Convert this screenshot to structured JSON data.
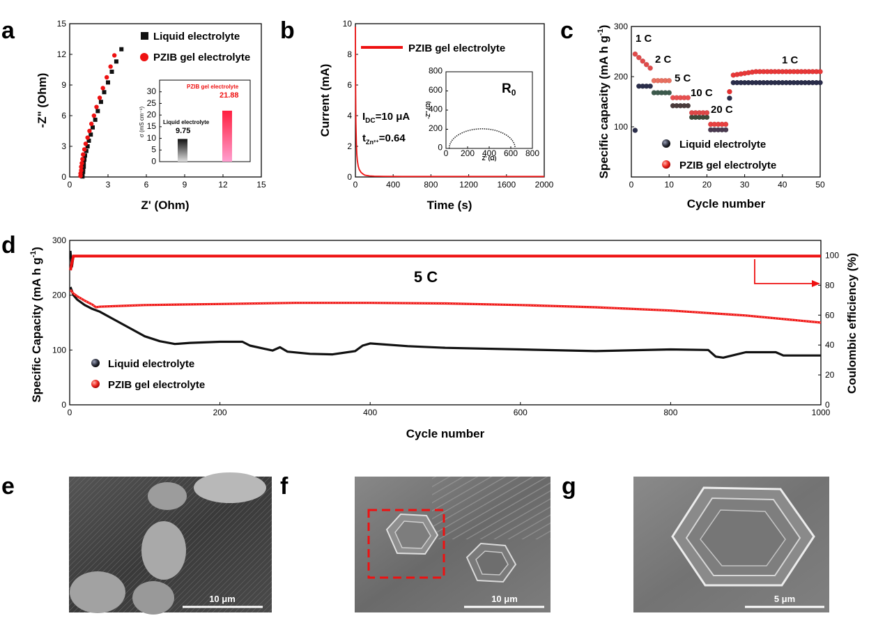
{
  "panels": {
    "a": "a",
    "b": "b",
    "c": "c",
    "d": "d",
    "e": "e",
    "f": "f",
    "g": "g"
  },
  "colors": {
    "liquid": "#111111",
    "gel": "#ee1111"
  },
  "chart_data": [
    {
      "id": "a",
      "type": "scatter",
      "xlabel": "Z' (Ohm)",
      "ylabel": "-Z\" (Ohm)",
      "xlim": [
        0,
        15
      ],
      "ylim": [
        0,
        15
      ],
      "xticks": [
        "0",
        "3",
        "6",
        "9",
        "12",
        "15"
      ],
      "yticks": [
        "0",
        "3",
        "6",
        "9",
        "12",
        "15"
      ],
      "series": [
        {
          "name": "Liquid electrolyte",
          "marker": "square",
          "color": "#111111",
          "x": [
            1.0,
            1.0,
            1.05,
            1.05,
            1.1,
            1.1,
            1.15,
            1.2,
            1.3,
            1.4,
            1.5,
            1.65,
            1.8,
            2.0,
            2.2,
            2.45,
            2.7,
            3.0,
            3.3,
            3.65,
            4.05
          ],
          "y": [
            0.05,
            0.25,
            0.5,
            0.75,
            1.0,
            1.35,
            1.7,
            2.1,
            2.55,
            3.0,
            3.55,
            4.15,
            4.85,
            5.6,
            6.45,
            7.35,
            8.3,
            9.25,
            10.3,
            11.3,
            12.5
          ]
        },
        {
          "name": "PZIB gel electrolyte",
          "marker": "circle",
          "color": "#ee1111",
          "x": [
            0.85,
            0.85,
            0.9,
            0.9,
            0.95,
            1.0,
            1.05,
            1.15,
            1.25,
            1.4,
            1.55,
            1.7,
            1.9,
            2.1,
            2.35,
            2.6,
            2.9,
            3.2,
            3.5
          ],
          "y": [
            0.1,
            0.35,
            0.65,
            1.0,
            1.35,
            1.75,
            2.2,
            2.7,
            3.25,
            3.85,
            4.5,
            5.2,
            6.0,
            6.85,
            7.75,
            8.7,
            9.75,
            10.8,
            11.9
          ]
        }
      ],
      "inset": {
        "ylabel": "σ (mS cm⁻¹)",
        "ylim": [
          0,
          35
        ],
        "yticks": [
          "0",
          "5",
          "10",
          "15",
          "20",
          "25",
          "30"
        ],
        "bars": [
          {
            "label": "Liquid electrolyte",
            "value": 9.75,
            "value_text": "9.75"
          },
          {
            "label": "PZIB gel electrolyte",
            "value": 21.88,
            "value_text": "21.88"
          }
        ]
      }
    },
    {
      "id": "b",
      "type": "line",
      "xlabel": "Time (s)",
      "ylabel": "Current (mA)",
      "xlim": [
        0,
        2000
      ],
      "ylim": [
        0,
        10
      ],
      "xticks": [
        "0",
        "400",
        "800",
        "1200",
        "1600",
        "2000"
      ],
      "yticks": [
        "0",
        "2",
        "4",
        "6",
        "8",
        "10"
      ],
      "series": [
        {
          "name": "PZIB gel electrolyte",
          "color": "#ee1111",
          "x": [
            0,
            2,
            5,
            10,
            15,
            20,
            30,
            40,
            60,
            80,
            100,
            150,
            200,
            300,
            500,
            800,
            1200,
            1600,
            2000
          ],
          "y": [
            9.8,
            6.0,
            3.6,
            2.2,
            1.5,
            1.1,
            0.7,
            0.5,
            0.3,
            0.2,
            0.12,
            0.07,
            0.05,
            0.04,
            0.03,
            0.03,
            0.03,
            0.03,
            0.03
          ]
        }
      ],
      "annotations": {
        "idc": "I_DC=10 μA",
        "idc_main": "I",
        "idc_sub": "DC",
        "idc_rest": "=10 μA",
        "t_main": "t",
        "t_sub": "Zn²⁺",
        "t_rest": "=0.64"
      },
      "inset": {
        "label": "R₀",
        "label_main": "R",
        "label_sub": "0",
        "xlabel": "Z' (Ω)",
        "ylabel": "-Z'' (Ω)",
        "xlim": [
          0,
          800
        ],
        "ylim": [
          0,
          800
        ],
        "xticks": [
          "0",
          "200",
          "400",
          "600",
          "800"
        ],
        "yticks": [
          "0",
          "200",
          "400",
          "600",
          "800"
        ]
      }
    },
    {
      "id": "c",
      "type": "scatter",
      "xlabel": "Cycle number",
      "ylabel": "Specific capacity (mA h g⁻¹)",
      "ylabel_main": "Specific capacity (mA h g",
      "ylabel_sup": "-1",
      "ylabel_end": ")",
      "xlim": [
        0,
        50
      ],
      "ylim": [
        0,
        300
      ],
      "xticks": [
        "0",
        "10",
        "20",
        "30",
        "40",
        "50"
      ],
      "yticks": [
        "100",
        "200",
        "300"
      ],
      "rates": [
        "1 C",
        "2 C",
        "5 C",
        "10 C",
        "20 C",
        "1 C"
      ],
      "series": [
        {
          "name": "Liquid electrolyte",
          "segments": [
            [
              1,
              1,
              93
            ],
            [
              2,
              5,
              181
            ],
            [
              6,
              10,
              168
            ],
            [
              11,
              15,
              142
            ],
            [
              16,
              20,
              119
            ],
            [
              21,
              25,
              94
            ],
            [
              26,
              26,
              157
            ],
            [
              27,
              50,
              188
            ]
          ]
        },
        {
          "name": "PZIB gel electrolyte",
          "segments": [
            [
              1,
              5,
              226
            ],
            [
              6,
              10,
              192
            ],
            [
              11,
              15,
              158
            ],
            [
              16,
              20,
              128
            ],
            [
              21,
              25,
              105
            ],
            [
              26,
              26,
              170
            ],
            [
              27,
              50,
              210
            ]
          ]
        }
      ]
    },
    {
      "id": "d",
      "type": "line",
      "xlabel": "Cycle number",
      "ylabel": "Specific Capacity (mA h g⁻¹)",
      "ylabel_main": "Specific Capacity (mA h g",
      "ylabel_sup": "-1",
      "ylabel_end": ")",
      "y2label": "Coulombic efficiency (%)",
      "xlim": [
        0,
        1000
      ],
      "ylim": [
        0,
        300
      ],
      "y2lim": [
        0,
        110
      ],
      "xticks": [
        "0",
        "200",
        "400",
        "600",
        "800",
        "1000"
      ],
      "yticks": [
        "0",
        "100",
        "200",
        "300"
      ],
      "y2ticks": [
        "0",
        "20",
        "40",
        "60",
        "80",
        "100"
      ],
      "annotation": "5 C",
      "series": [
        {
          "name": "Liquid electrolyte",
          "x": [
            1,
            5,
            10,
            20,
            30,
            40,
            60,
            80,
            100,
            120,
            140,
            160,
            200,
            230,
            240,
            270,
            280,
            290,
            320,
            350,
            380,
            390,
            400,
            450,
            500,
            600,
            700,
            800,
            850,
            860,
            870,
            900,
            940,
            950,
            1000
          ],
          "y": [
            215,
            200,
            192,
            182,
            175,
            170,
            155,
            140,
            125,
            116,
            111,
            113,
            115,
            115,
            108,
            99,
            105,
            97,
            93,
            92,
            98,
            108,
            112,
            107,
            104,
            101,
            98,
            101,
            100,
            88,
            86,
            96,
            96,
            90,
            90
          ]
        },
        {
          "name": "PZIB gel electrolyte",
          "x": [
            1,
            5,
            10,
            20,
            30,
            35,
            40,
            60,
            100,
            200,
            300,
            400,
            500,
            600,
            700,
            800,
            900,
            1000
          ],
          "y": [
            210,
            203,
            198,
            190,
            183,
            178,
            179,
            180,
            182,
            184,
            186,
            186,
            185,
            182,
            178,
            172,
            163,
            150
          ]
        },
        {
          "name": "Liquid electrolyte CE",
          "axis": "right",
          "color": "#111111",
          "x": [
            1,
            3,
            5,
            1000
          ],
          "y": [
            103,
            92,
            99.5,
            99.5
          ]
        },
        {
          "name": "PZIB gel electrolyte CE",
          "axis": "right",
          "color": "#ee1111",
          "x": [
            1,
            3,
            5,
            1000
          ],
          "y": [
            90,
            95,
            99.5,
            99.5
          ]
        }
      ]
    }
  ],
  "sem": [
    {
      "id": "e",
      "scale": "10 μm"
    },
    {
      "id": "f",
      "scale": "10 μm"
    },
    {
      "id": "g",
      "scale": "5 μm"
    }
  ]
}
